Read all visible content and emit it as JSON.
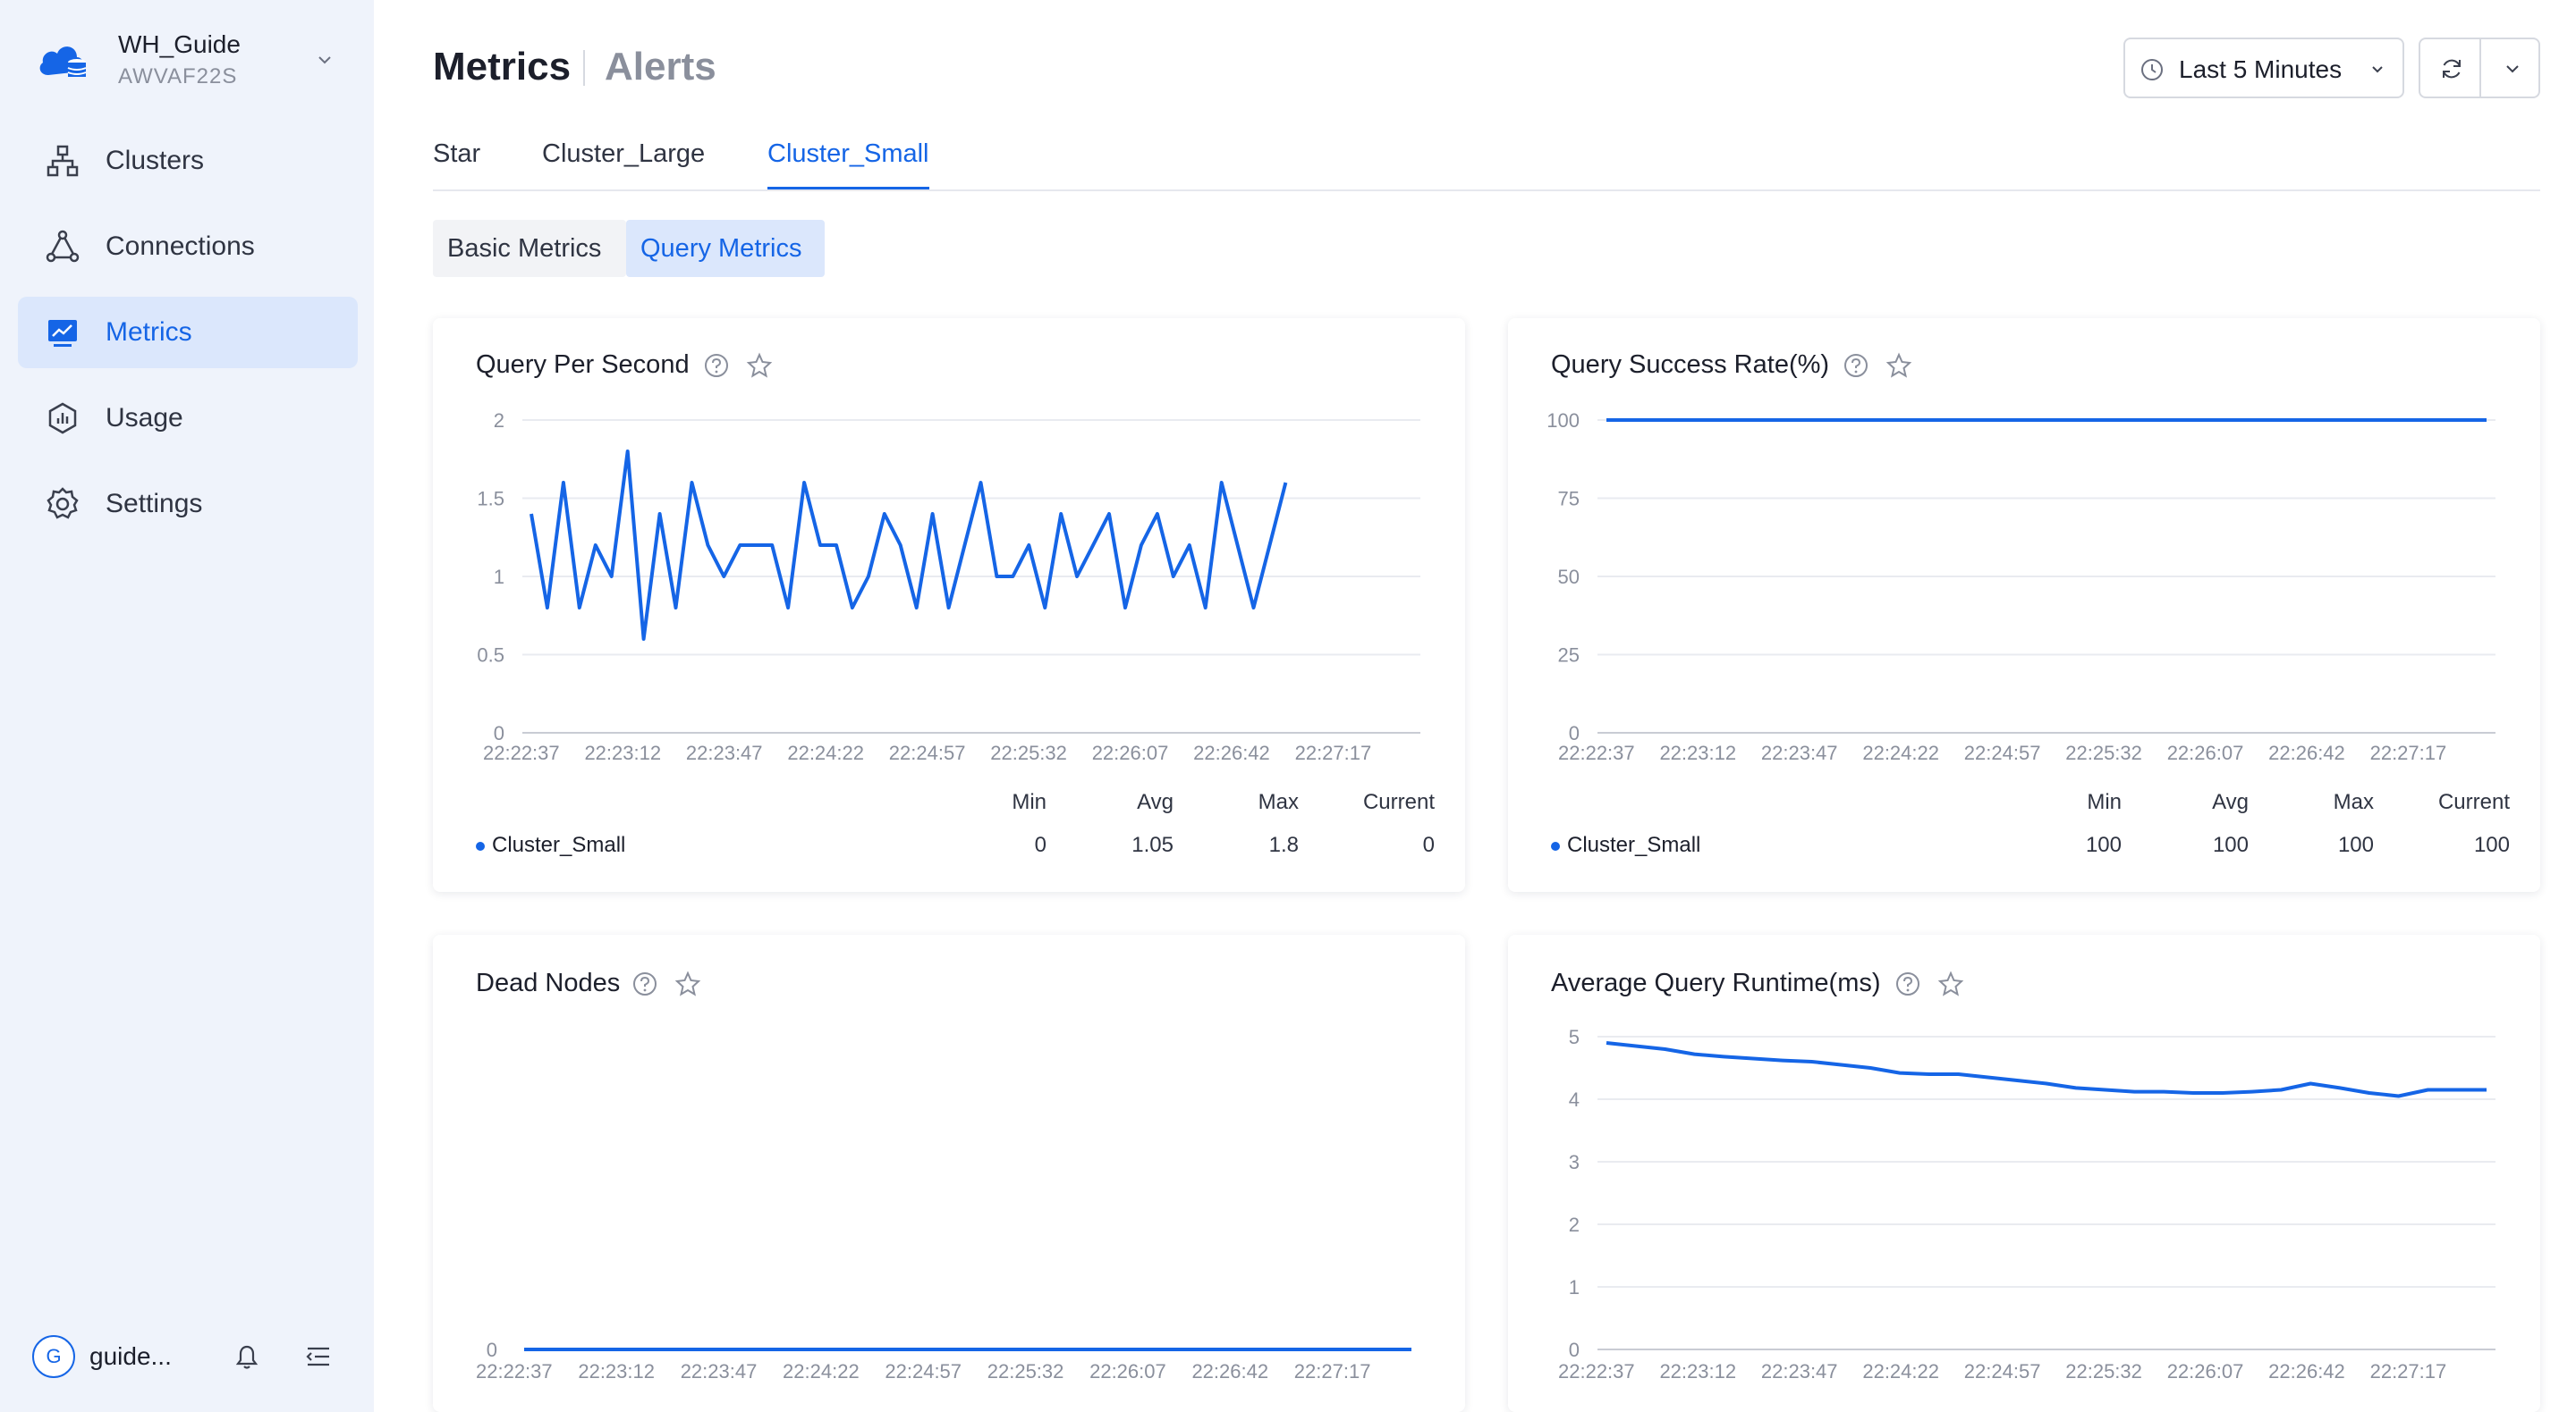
{
  "workspace": {
    "name": "WH_Guide",
    "id": "AWVAF22S"
  },
  "sidebar": {
    "items": [
      {
        "label": "Clusters",
        "icon": "cluster-icon",
        "active": false
      },
      {
        "label": "Connections",
        "icon": "connections-icon",
        "active": false
      },
      {
        "label": "Metrics",
        "icon": "metrics-icon",
        "active": true
      },
      {
        "label": "Usage",
        "icon": "usage-icon",
        "active": false
      },
      {
        "label": "Settings",
        "icon": "gear-icon",
        "active": false
      }
    ],
    "user": {
      "avatar_letter": "G",
      "name": "guide..."
    }
  },
  "header": {
    "title": "Metrics",
    "alt_title": "Alerts",
    "time_range": "Last 5 Minutes"
  },
  "tabs": [
    {
      "label": "Star",
      "active": false
    },
    {
      "label": "Cluster_Large",
      "active": false
    },
    {
      "label": "Cluster_Small",
      "active": true
    }
  ],
  "subtabs": [
    {
      "label": "Basic Metrics",
      "active": false
    },
    {
      "label": "Query Metrics",
      "active": true
    }
  ],
  "colors": {
    "accent": "#1565e6",
    "series": "#1565e6",
    "sidebar_bg": "#eff3fb"
  },
  "stats_headers": {
    "min": "Min",
    "avg": "Avg",
    "max": "Max",
    "current": "Current"
  },
  "panels": [
    {
      "title": "Query Per Second",
      "legend": "Cluster_Small",
      "stats": {
        "min": "0",
        "avg": "1.05",
        "max": "1.8",
        "current": "0"
      }
    },
    {
      "title": "Query Success Rate(%)",
      "legend": "Cluster_Small",
      "stats": {
        "min": "100",
        "avg": "100",
        "max": "100",
        "current": "100"
      }
    },
    {
      "title": "Dead Nodes"
    },
    {
      "title": "Average Query Runtime(ms)"
    }
  ],
  "chart_data": [
    {
      "type": "line",
      "title": "Query Per Second",
      "xticks": [
        "22:22:37",
        "22:23:12",
        "22:23:47",
        "22:24:22",
        "22:24:57",
        "22:25:32",
        "22:26:07",
        "22:26:42",
        "22:27:17"
      ],
      "yticks": [
        "0",
        "0.5",
        "1",
        "1.5",
        "2"
      ],
      "ylim": [
        0,
        2
      ],
      "xlim": [
        0,
        60
      ],
      "series": [
        {
          "name": "Cluster_Small",
          "x": [
            0,
            1,
            2,
            3,
            4,
            5,
            6,
            7,
            8,
            9,
            10,
            11,
            12,
            13,
            14,
            15,
            16,
            17,
            18,
            19,
            20,
            21,
            22,
            23,
            24,
            25,
            26,
            27,
            28,
            29,
            30,
            31,
            32,
            33,
            34,
            35,
            36,
            37,
            38,
            39,
            40,
            41,
            42,
            43,
            44,
            45,
            46,
            47
          ],
          "values": [
            1.4,
            0.8,
            1.6,
            0.8,
            1.2,
            1.0,
            1.8,
            0.6,
            1.4,
            0.8,
            1.6,
            1.2,
            1.0,
            1.2,
            1.2,
            1.2,
            0.8,
            1.6,
            1.2,
            1.2,
            0.8,
            1.0,
            1.4,
            1.2,
            0.8,
            1.4,
            0.8,
            1.2,
            1.6,
            1.0,
            1.0,
            1.2,
            0.8,
            1.4,
            1.0,
            1.2,
            1.4,
            0.8,
            1.2,
            1.4,
            1.0,
            1.2,
            0.8,
            1.6,
            1.2,
            0.8,
            1.2,
            1.6
          ]
        }
      ]
    },
    {
      "type": "line",
      "title": "Query Success Rate(%)",
      "xticks": [
        "22:22:37",
        "22:23:12",
        "22:23:47",
        "22:24:22",
        "22:24:57",
        "22:25:32",
        "22:26:07",
        "22:26:42",
        "22:27:17"
      ],
      "yticks": [
        "0",
        "25",
        "50",
        "75",
        "100"
      ],
      "ylim": [
        0,
        100
      ],
      "xlim": [
        0,
        60
      ],
      "series": [
        {
          "name": "Cluster_Small",
          "x": [
            0,
            60
          ],
          "values": [
            100,
            100
          ]
        }
      ]
    },
    {
      "type": "line",
      "title": "Dead Nodes",
      "xticks": [
        "22:22:37",
        "22:23:12",
        "22:23:47",
        "22:24:22",
        "22:24:57",
        "22:25:32",
        "22:26:07",
        "22:26:42",
        "22:27:17"
      ],
      "yticks": [
        "0"
      ],
      "ylim": [
        0,
        1
      ],
      "xlim": [
        0,
        60
      ],
      "series": [
        {
          "x": [
            0,
            60
          ],
          "values": [
            0,
            0
          ]
        }
      ]
    },
    {
      "type": "line",
      "title": "Average Query Runtime(ms)",
      "xticks": [
        "22:22:37",
        "22:23:12",
        "22:23:47",
        "22:24:22",
        "22:24:57",
        "22:25:32",
        "22:26:07",
        "22:26:42",
        "22:27:17"
      ],
      "yticks": [
        "0",
        "1",
        "2",
        "3",
        "4",
        "5"
      ],
      "ylim": [
        0,
        5
      ],
      "xlim": [
        0,
        60
      ],
      "series": [
        {
          "x": [
            0,
            2,
            4,
            6,
            8,
            10,
            12,
            14,
            16,
            18,
            20,
            22,
            24,
            26,
            28,
            30,
            32,
            34,
            36,
            38,
            40,
            42,
            44,
            46,
            48,
            50,
            52,
            54,
            56,
            58,
            60
          ],
          "values": [
            4.9,
            4.85,
            4.8,
            4.72,
            4.68,
            4.65,
            4.62,
            4.6,
            4.55,
            4.5,
            4.42,
            4.4,
            4.4,
            4.35,
            4.3,
            4.25,
            4.18,
            4.15,
            4.12,
            4.12,
            4.1,
            4.1,
            4.12,
            4.15,
            4.25,
            4.18,
            4.1,
            4.05,
            4.15,
            4.15,
            4.15
          ]
        }
      ]
    }
  ]
}
